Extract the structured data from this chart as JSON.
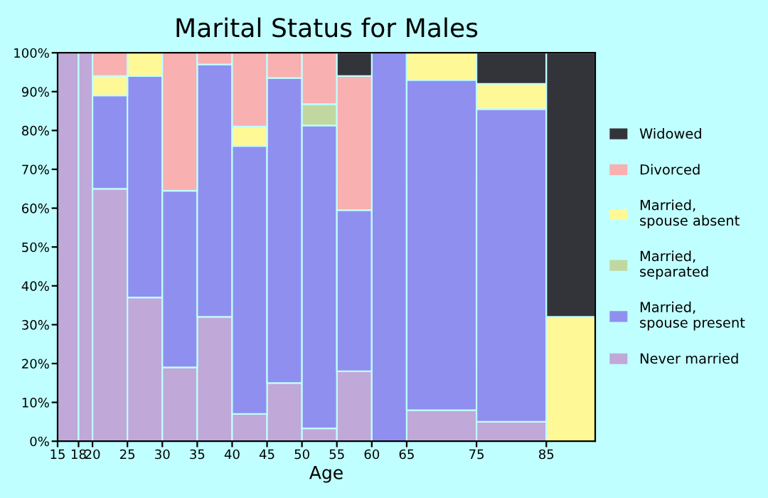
{
  "chart_data": {
    "type": "bar",
    "stacked": true,
    "title": "Marital Status for Males",
    "xlabel": "Age",
    "x": [
      16.5,
      19,
      22.5,
      27.5,
      32.5,
      37.5,
      42.5,
      47.5,
      52.5,
      57.5,
      62.5,
      70,
      80,
      88.5
    ],
    "xlim": [
      15,
      92
    ],
    "xticks": [
      15,
      18,
      20,
      25,
      30,
      35,
      40,
      45,
      50,
      55,
      60,
      65,
      75,
      85
    ],
    "ylim": [
      0,
      100
    ],
    "yticks": [
      {
        "value": 0,
        "label": "0%"
      },
      {
        "value": 10,
        "label": "10%"
      },
      {
        "value": 20,
        "label": "20%"
      },
      {
        "value": 30,
        "label": "30%"
      },
      {
        "value": 40,
        "label": "40%"
      },
      {
        "value": 50,
        "label": "50%"
      },
      {
        "value": 60,
        "label": "60%"
      },
      {
        "value": 70,
        "label": "70%"
      },
      {
        "value": 80,
        "label": "80%"
      },
      {
        "value": 90,
        "label": "90%"
      },
      {
        "value": 100,
        "label": "100%"
      }
    ],
    "legend": "right",
    "grid": false,
    "series": [
      {
        "name": "Never married",
        "color": "#c0a8d8",
        "values": [
          100,
          100,
          65,
          37,
          19,
          32,
          7,
          15,
          3.3,
          18,
          0,
          8,
          5,
          0
        ]
      },
      {
        "name": "Married,\nspouse present",
        "color": "#8f8ff0",
        "values": [
          0,
          0,
          24,
          57,
          45.5,
          65,
          69,
          78.5,
          78,
          41.5,
          100,
          85,
          80.5,
          0
        ]
      },
      {
        "name": "Married,\nseparated",
        "color": "#c0d8a0",
        "values": [
          0,
          0,
          0,
          0,
          0,
          0,
          0,
          0,
          5.5,
          0,
          0,
          0,
          0,
          0
        ]
      },
      {
        "name": "Married,\nspouse absent",
        "color": "#fff896",
        "values": [
          0,
          0,
          5,
          6,
          0,
          0,
          5,
          0,
          0,
          0,
          0,
          7,
          6.5,
          32
        ]
      },
      {
        "name": "Divorced",
        "color": "#f8b0b0",
        "values": [
          0,
          0,
          6,
          0,
          35.5,
          3,
          19,
          6.5,
          13.2,
          34.5,
          0,
          0,
          0,
          0
        ]
      },
      {
        "name": "Widowed",
        "color": "#33343a",
        "values": [
          0,
          0,
          0,
          0,
          0,
          0,
          0,
          0,
          0,
          6,
          0,
          0,
          8,
          68
        ]
      }
    ]
  }
}
